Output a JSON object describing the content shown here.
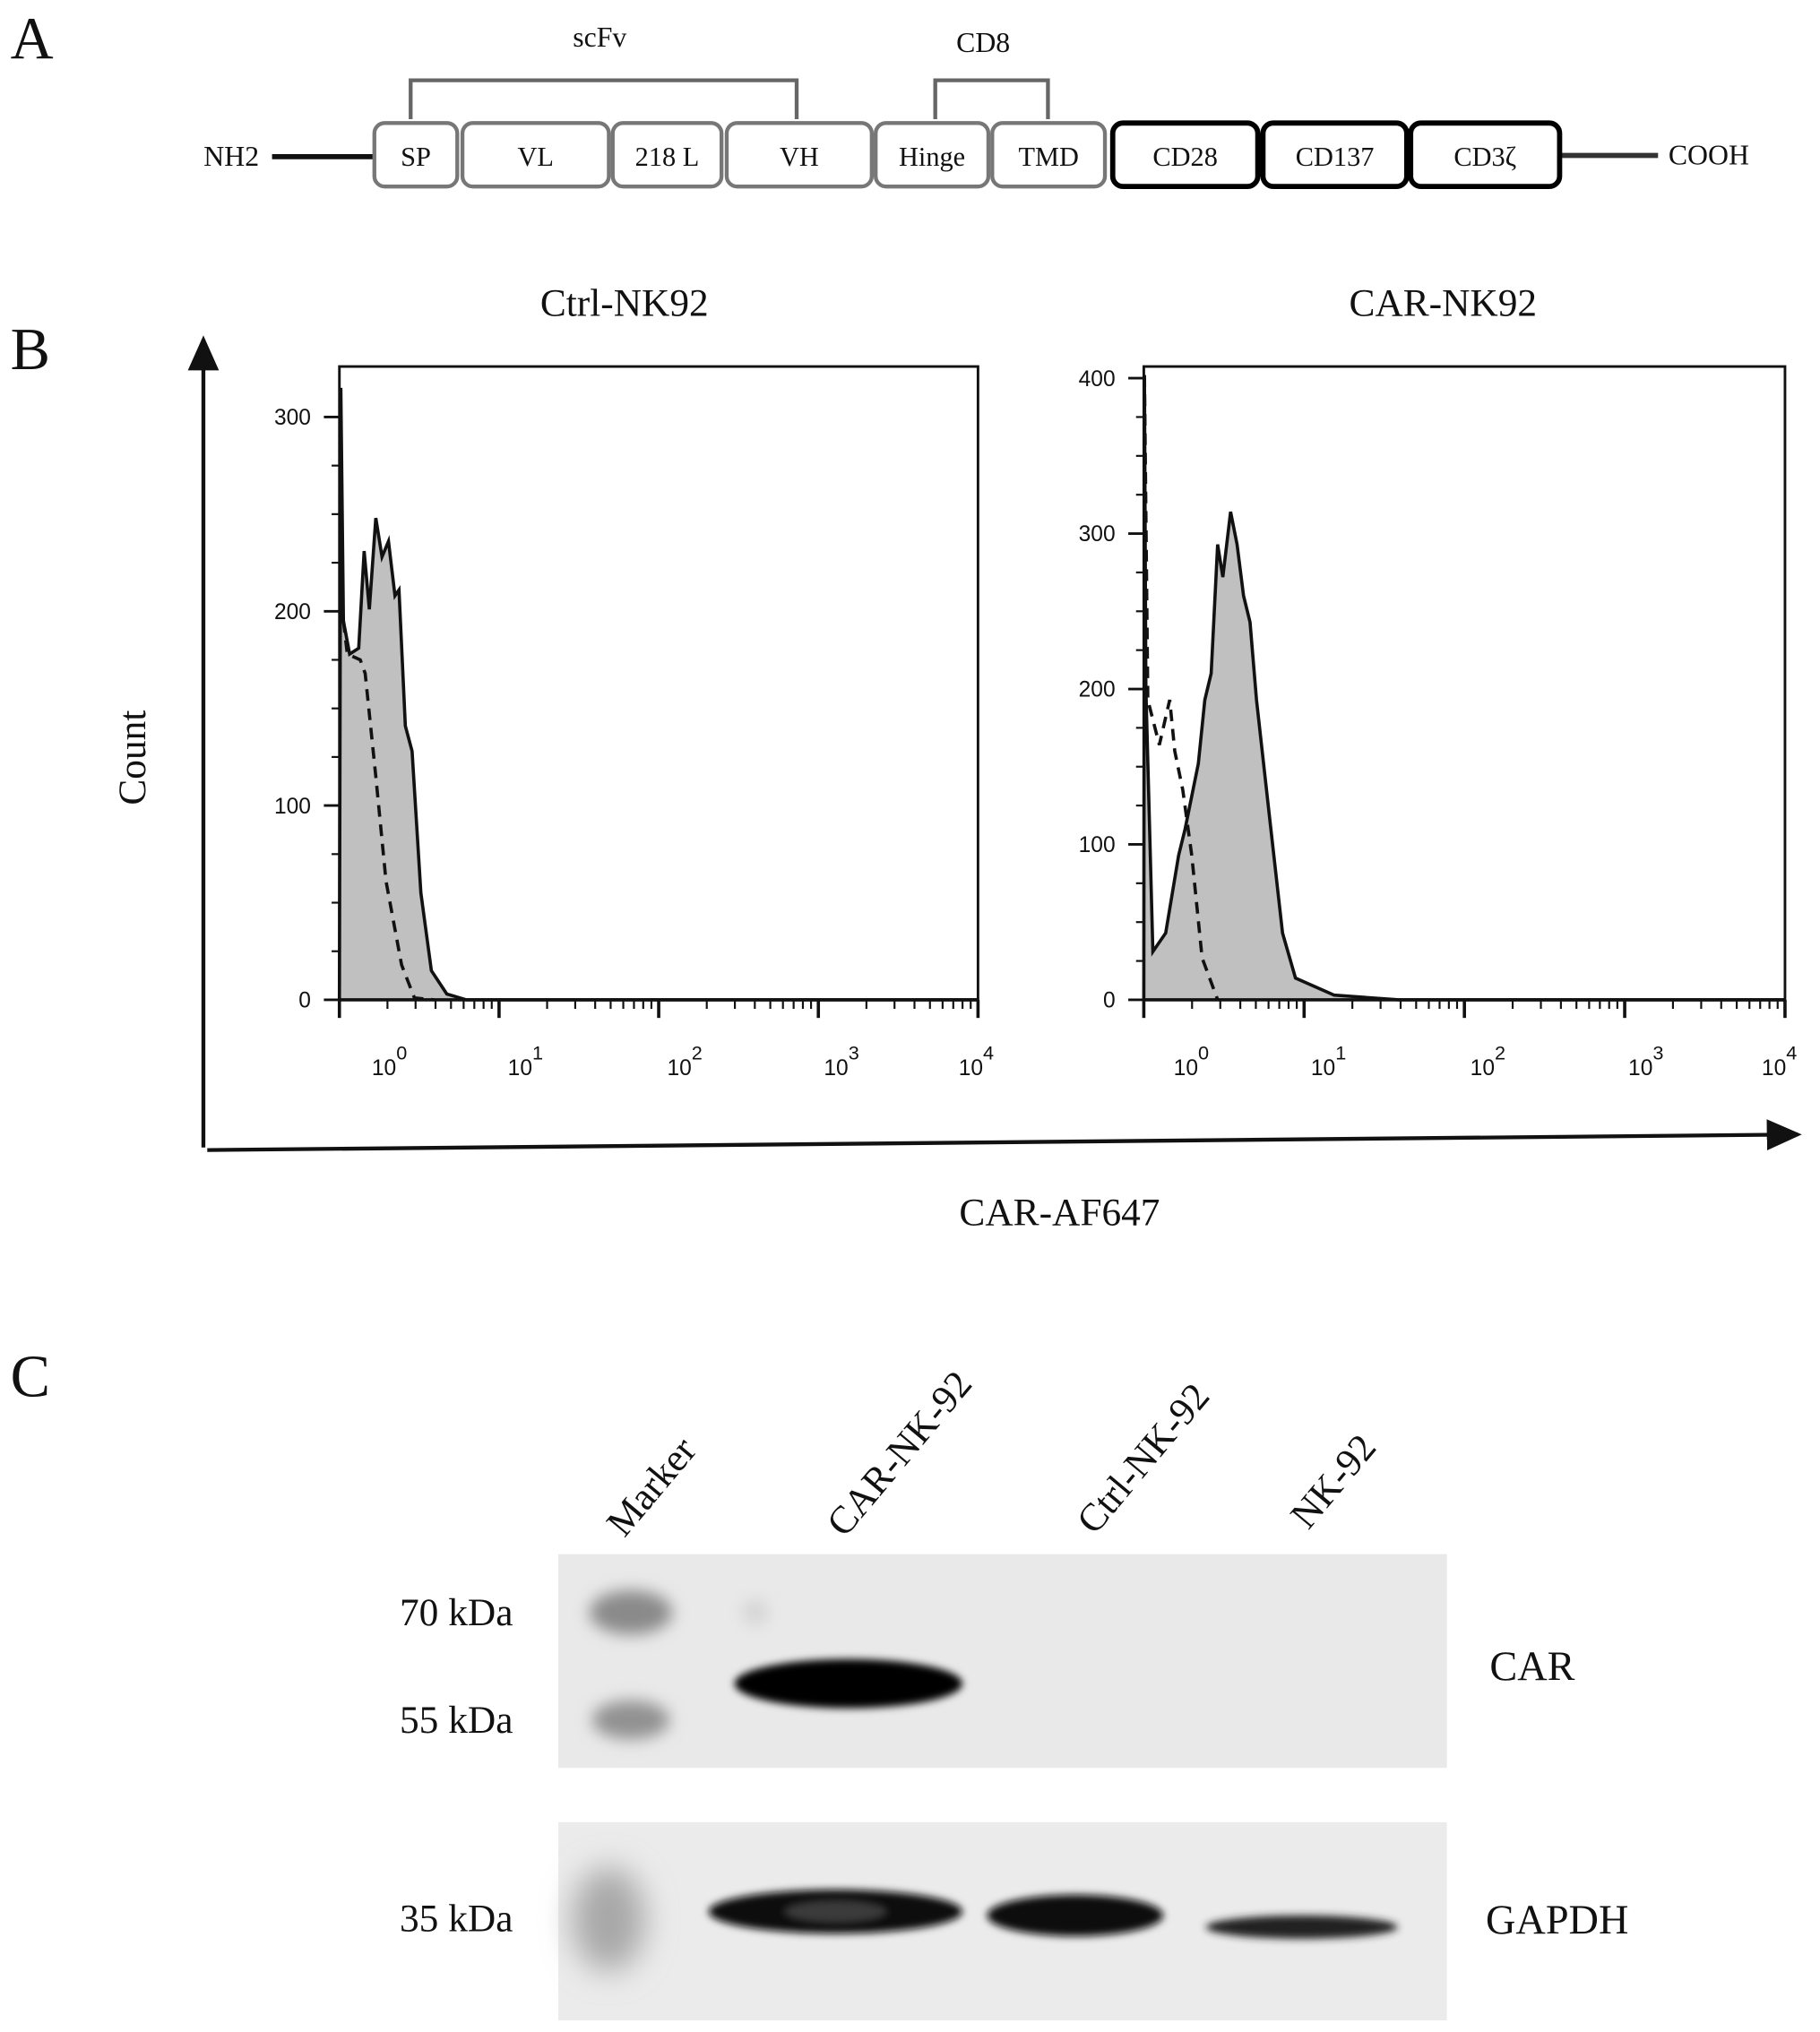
{
  "panel_labels": {
    "a": "A",
    "b": "B",
    "c": "C"
  },
  "construct": {
    "n_terminus": "NH2",
    "c_terminus": "COOH",
    "group_scfv": "scFv",
    "group_cd8": "CD8",
    "domains": [
      "SP",
      "VL",
      "218 L",
      "VH",
      "Hinge",
      "TMD",
      "CD28",
      "CD137",
      "CD3ζ"
    ]
  },
  "flow": {
    "y_axis_label": "Count",
    "x_axis_label": "CAR-AF647",
    "colors": {
      "fill": "#c0c0c0",
      "line": "#111111"
    }
  },
  "chart_data": [
    {
      "type": "area",
      "title": "Ctrl-NK92",
      "xscale": "log",
      "xlim": [
        1,
        10000
      ],
      "ylim": [
        0,
        320
      ],
      "yticks": [
        0,
        100,
        200,
        300
      ],
      "xtick_labels": [
        {
          "base": "10",
          "exp": "0"
        },
        {
          "base": "10",
          "exp": "1"
        },
        {
          "base": "10",
          "exp": "2"
        },
        {
          "base": "10",
          "exp": "3"
        },
        {
          "base": "10",
          "exp": "4"
        }
      ],
      "series": [
        {
          "style": "solid-filled",
          "points": [
            [
              1,
              0
            ],
            [
              1.02,
              315
            ],
            [
              1.06,
              195
            ],
            [
              1.16,
              178
            ],
            [
              1.32,
              181
            ],
            [
              1.43,
              231
            ],
            [
              1.54,
              201
            ],
            [
              1.69,
              248
            ],
            [
              1.85,
              228
            ],
            [
              2.03,
              236
            ],
            [
              2.23,
              208
            ],
            [
              2.36,
              211
            ],
            [
              2.59,
              141
            ],
            [
              2.85,
              128
            ],
            [
              3.24,
              55
            ],
            [
              3.77,
              15
            ],
            [
              4.71,
              3
            ],
            [
              6.24,
              0
            ],
            [
              10000,
              0
            ]
          ]
        },
        {
          "style": "dashed",
          "points": [
            [
              1.06,
              195
            ],
            [
              1.12,
              178
            ],
            [
              1.35,
              175
            ],
            [
              1.45,
              168
            ],
            [
              1.69,
              115
            ],
            [
              1.96,
              61
            ],
            [
              2.45,
              18
            ],
            [
              2.95,
              1
            ],
            [
              3.91,
              0
            ]
          ]
        }
      ]
    },
    {
      "type": "area",
      "title": "CAR-NK92",
      "xscale": "log",
      "xlim": [
        1,
        10000
      ],
      "ylim": [
        0,
        405
      ],
      "yticks": [
        0,
        100,
        200,
        300,
        400
      ],
      "xtick_labels": [
        {
          "base": "10",
          "exp": "0"
        },
        {
          "base": "10",
          "exp": "1"
        },
        {
          "base": "10",
          "exp": "2"
        },
        {
          "base": "10",
          "exp": "3"
        },
        {
          "base": "10",
          "exp": "4"
        }
      ],
      "series": [
        {
          "style": "solid-filled",
          "points": [
            [
              1,
              0
            ],
            [
              1.01,
              400
            ],
            [
              1.03,
              200
            ],
            [
              1.14,
              31
            ],
            [
              1.37,
              43
            ],
            [
              1.65,
              93
            ],
            [
              1.81,
              110
            ],
            [
              2.19,
              152
            ],
            [
              2.4,
              193
            ],
            [
              2.63,
              210
            ],
            [
              2.89,
              293
            ],
            [
              3.11,
              272
            ],
            [
              3.48,
              314
            ],
            [
              3.82,
              293
            ],
            [
              4.19,
              260
            ],
            [
              4.6,
              243
            ],
            [
              5.05,
              193
            ],
            [
              6.08,
              118
            ],
            [
              7.33,
              43
            ],
            [
              8.83,
              14
            ],
            [
              15.4,
              3
            ],
            [
              39.0,
              0
            ],
            [
              10000,
              0
            ]
          ]
        },
        {
          "style": "dashed",
          "points": [
            [
              1.01,
              402
            ],
            [
              1.06,
              193
            ],
            [
              1.25,
              164
            ],
            [
              1.45,
              193
            ],
            [
              1.56,
              160
            ],
            [
              1.75,
              135
            ],
            [
              1.99,
              93
            ],
            [
              2.31,
              27
            ],
            [
              2.89,
              0
            ]
          ]
        }
      ]
    }
  ],
  "western_blot": {
    "lanes": [
      "Marker",
      "CAR-NK-92",
      "Ctrl-NK-92",
      "NK-92"
    ],
    "markers": [
      "70 kDa",
      "55 kDa",
      "35 kDa"
    ],
    "targets": [
      "CAR",
      "GAPDH"
    ]
  }
}
